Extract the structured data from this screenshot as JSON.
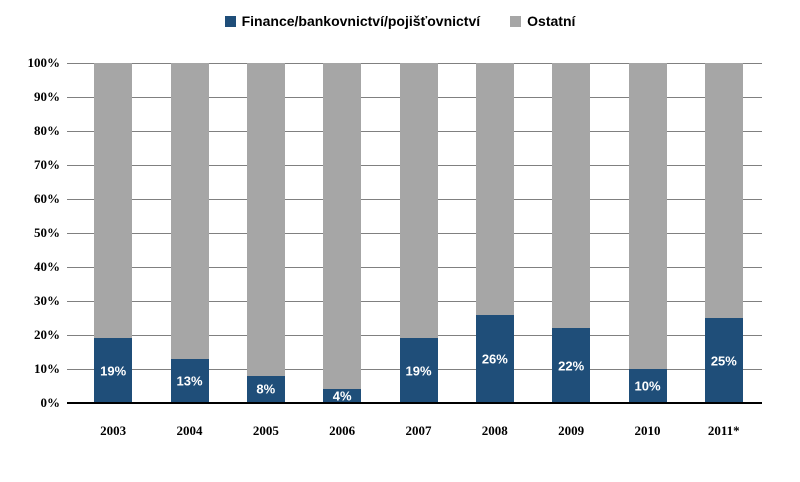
{
  "chart_data": {
    "type": "bar",
    "variant": "stacked-100-percent",
    "title": "",
    "categories": [
      "2003",
      "2004",
      "2005",
      "2006",
      "2007",
      "2008",
      "2009",
      "2010",
      "2011*"
    ],
    "series": [
      {
        "name": "Finance/bankovnictví/pojišťovnictví",
        "color": "#1F4E79",
        "values": [
          19,
          13,
          8,
          4,
          19,
          26,
          22,
          10,
          25
        ],
        "data_labels": [
          "19%",
          "13%",
          "8%",
          "4%",
          "19%",
          "26%",
          "22%",
          "10%",
          "25%"
        ]
      },
      {
        "name": "Ostatní",
        "color": "#A6A6A6",
        "values": [
          81,
          87,
          92,
          96,
          81,
          74,
          78,
          90,
          75
        ],
        "data_labels": []
      }
    ],
    "ylim": [
      0,
      100
    ],
    "y_tick_labels": [
      "100%",
      "90%",
      "80%",
      "70%",
      "60%",
      "50%",
      "40%",
      "30%",
      "20%",
      "10%",
      "0%"
    ],
    "grid": true,
    "legend_position": "top",
    "data_label_color": "#FFFFFF"
  },
  "colors": {
    "background": "#FFFFFF",
    "gridline": "#808080",
    "tick": "#808080",
    "axis_line": "#000000",
    "finance": "#1F4E79",
    "ostatni": "#A6A6A6"
  }
}
